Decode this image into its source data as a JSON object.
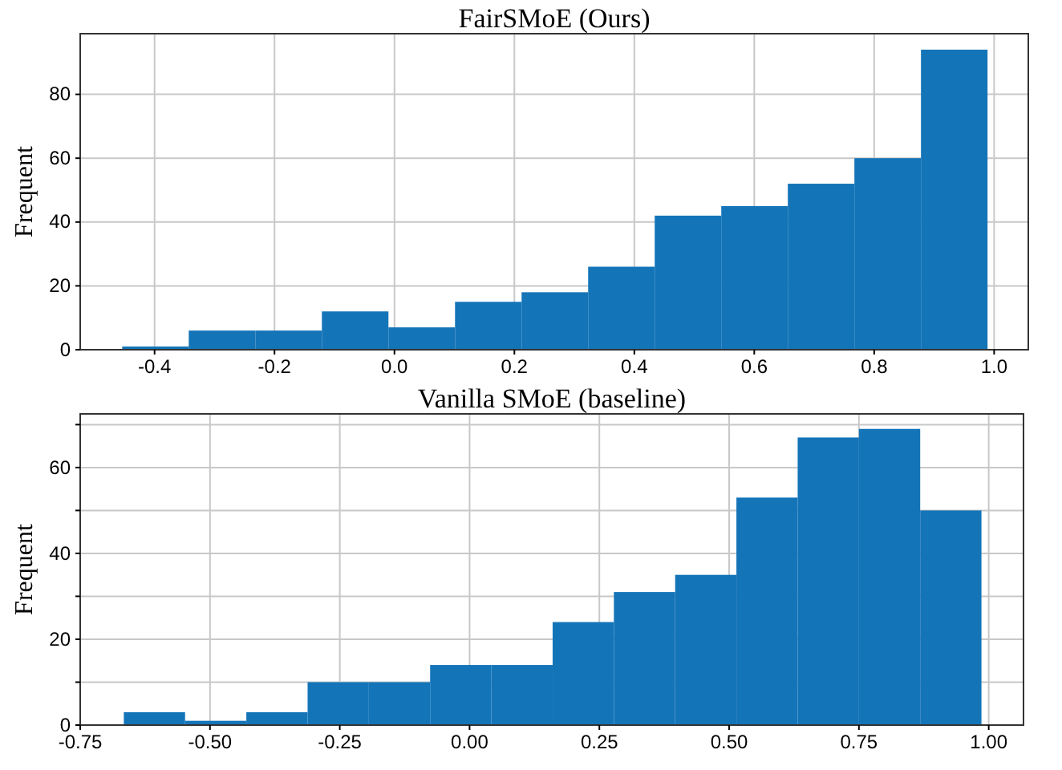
{
  "chart_data": [
    {
      "type": "histogram",
      "title": "FairSMoE (Ours)",
      "ylabel": "Frequent",
      "color": "#1474b8",
      "bins": [
        -0.454,
        -0.343,
        -0.232,
        -0.121,
        -0.01,
        0.101,
        0.212,
        0.323,
        0.434,
        0.545,
        0.656,
        0.767,
        0.878,
        0.989
      ],
      "values": [
        1,
        6,
        6,
        12,
        7,
        15,
        18,
        26,
        42,
        45,
        52,
        60,
        94
      ],
      "xlim": [
        -0.524,
        1.057
      ],
      "ylim": [
        0,
        99
      ],
      "xticks": [
        {
          "value": -0.4,
          "label": "-0.4"
        },
        {
          "value": -0.2,
          "label": "-0.2"
        },
        {
          "value": 0,
          "label": "0.0"
        },
        {
          "value": 0.2,
          "label": "0.2"
        },
        {
          "value": 0.4,
          "label": "0.4"
        },
        {
          "value": 0.6,
          "label": "0.6"
        },
        {
          "value": 0.8,
          "label": "0.8"
        },
        {
          "value": 1,
          "label": "1.0"
        }
      ],
      "yticks": [
        0,
        20,
        40,
        60,
        80
      ],
      "grid": true
    },
    {
      "type": "histogram",
      "title": "Vanilla SMoE (baseline)",
      "ylabel": "Frequent",
      "color": "#1474b8",
      "bins": [
        -0.666,
        -0.548,
        -0.43,
        -0.312,
        -0.194,
        -0.076,
        0.042,
        0.16,
        0.278,
        0.396,
        0.514,
        0.632,
        0.75,
        0.868,
        0.986
      ],
      "values": [
        3,
        1,
        3,
        10,
        10,
        14,
        14,
        24,
        31,
        35,
        53,
        67,
        69,
        50
      ],
      "xlim": [
        -0.75,
        1.067
      ],
      "ylim": [
        0,
        72.5
      ],
      "xticks": [
        {
          "value": -0.75,
          "label": "-0.75"
        },
        {
          "value": -0.5,
          "label": "-0.50"
        },
        {
          "value": -0.25,
          "label": "-0.25"
        },
        {
          "value": 0,
          "label": "0.00"
        },
        {
          "value": 0.25,
          "label": "0.25"
        },
        {
          "value": 0.5,
          "label": "0.50"
        },
        {
          "value": 0.75,
          "label": "0.75"
        },
        {
          "value": 1,
          "label": "1.00"
        }
      ],
      "yticks": [
        0,
        {
          "value": 10,
          "label": null
        },
        20,
        {
          "value": 30,
          "label": null
        },
        40,
        {
          "value": 50,
          "label": null
        },
        60,
        {
          "value": 70,
          "label": null
        }
      ],
      "grid": true
    }
  ]
}
